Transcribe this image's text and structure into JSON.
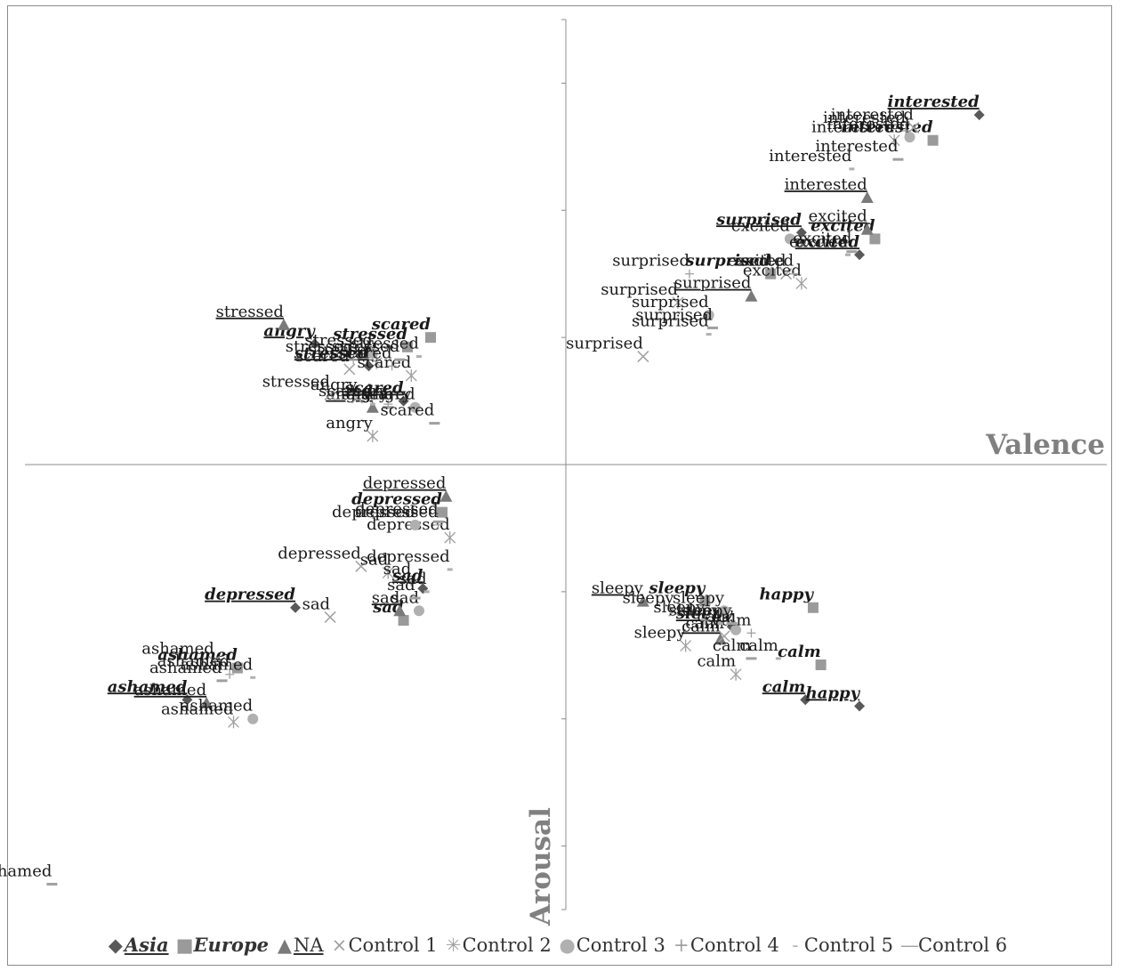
{
  "chart_data": {
    "type": "scatter",
    "title": "",
    "xlabel": "Valence",
    "ylabel": "Arousal",
    "xlim": [
      -0.7,
      0.7
    ],
    "ylim": [
      -0.7,
      0.7
    ],
    "grid": false,
    "legend_position": "bottom",
    "series": [
      {
        "name": "Asia",
        "marker": "diamond",
        "color": "#595959",
        "label_style": "bold-italic-underline",
        "points": [
          {
            "label": "interested",
            "x": 0.535,
            "y": 0.55
          },
          {
            "label": "excited",
            "x": 0.38,
            "y": 0.33
          },
          {
            "label": "surprised",
            "x": 0.305,
            "y": 0.365
          },
          {
            "label": "stressed",
            "x": -0.255,
            "y": 0.155
          },
          {
            "label": "angry",
            "x": -0.325,
            "y": 0.19
          },
          {
            "label": "scared",
            "x": -0.21,
            "y": 0.1
          },
          {
            "label": "depressed",
            "x": -0.35,
            "y": -0.225
          },
          {
            "label": "sad",
            "x": -0.185,
            "y": -0.195
          },
          {
            "label": "ashamed",
            "x": -0.49,
            "y": -0.37
          },
          {
            "label": "sleepy",
            "x": 0.215,
            "y": -0.255
          },
          {
            "label": "calm",
            "x": 0.31,
            "y": -0.37
          },
          {
            "label": "happy",
            "x": 0.38,
            "y": -0.38
          }
        ]
      },
      {
        "name": "Europe",
        "marker": "square",
        "color": "#9a9a9a",
        "label_style": "bold-italic",
        "points": [
          {
            "label": "interested",
            "x": 0.475,
            "y": 0.51
          },
          {
            "label": "excited",
            "x": 0.4,
            "y": 0.355
          },
          {
            "label": "surprised",
            "x": 0.265,
            "y": 0.3
          },
          {
            "label": "stressed",
            "x": -0.205,
            "y": 0.185
          },
          {
            "label": "scared",
            "x": -0.175,
            "y": 0.2
          },
          {
            "label": "depressed",
            "x": -0.16,
            "y": -0.075
          },
          {
            "label": "sad",
            "x": -0.21,
            "y": -0.245
          },
          {
            "label": "ashamed",
            "x": -0.425,
            "y": -0.32
          },
          {
            "label": "sleepy",
            "x": 0.18,
            "y": -0.215
          },
          {
            "label": "happy",
            "x": 0.32,
            "y": -0.225
          },
          {
            "label": "calm",
            "x": 0.33,
            "y": -0.315
          }
        ]
      },
      {
        "name": "NA",
        "marker": "triangle",
        "color": "#7a7a7a",
        "label_style": "underline",
        "points": [
          {
            "label": "interested",
            "x": 0.39,
            "y": 0.42
          },
          {
            "label": "excited",
            "x": 0.39,
            "y": 0.37
          },
          {
            "label": "surprised",
            "x": 0.24,
            "y": 0.265
          },
          {
            "label": "stressed",
            "x": -0.365,
            "y": 0.22
          },
          {
            "label": "angry",
            "x": -0.25,
            "y": 0.09
          },
          {
            "label": "depressed",
            "x": -0.155,
            "y": -0.05
          },
          {
            "label": "sad",
            "x": -0.215,
            "y": -0.23
          },
          {
            "label": "ashamed",
            "x": -0.465,
            "y": -0.375
          },
          {
            "label": "sleepy",
            "x": 0.1,
            "y": -0.215
          },
          {
            "label": "calm",
            "x": 0.2,
            "y": -0.275
          }
        ]
      },
      {
        "name": "Control 1",
        "marker": "x",
        "color": "#a0a0a0",
        "label_style": "plain",
        "points": [
          {
            "label": "interested",
            "x": 0.45,
            "y": 0.53
          },
          {
            "label": "excited",
            "x": 0.285,
            "y": 0.3
          },
          {
            "label": "surprised",
            "x": 0.1,
            "y": 0.17
          },
          {
            "label": "stressed",
            "x": -0.305,
            "y": 0.11
          },
          {
            "label": "angry",
            "x": -0.27,
            "y": 0.105
          },
          {
            "label": "scared",
            "x": -0.28,
            "y": 0.15
          },
          {
            "label": "depressed",
            "x": -0.265,
            "y": -0.16
          },
          {
            "label": "sad",
            "x": -0.305,
            "y": -0.24
          },
          {
            "label": "ashamed",
            "x": -0.455,
            "y": -0.31
          },
          {
            "label": "sleepy",
            "x": 0.14,
            "y": -0.23
          },
          {
            "label": "calm",
            "x": 0.205,
            "y": -0.27
          }
        ]
      },
      {
        "name": "Control 2",
        "marker": "asterisk",
        "color": "#a0a0a0",
        "label_style": "plain",
        "points": [
          {
            "label": "interested",
            "x": 0.425,
            "y": 0.51
          },
          {
            "label": "excited",
            "x": 0.305,
            "y": 0.285
          },
          {
            "label": "surprised",
            "x": 0.145,
            "y": 0.255
          },
          {
            "label": "stressed",
            "x": -0.245,
            "y": 0.16
          },
          {
            "label": "angry",
            "x": -0.25,
            "y": 0.045
          },
          {
            "label": "scared",
            "x": -0.2,
            "y": 0.14
          },
          {
            "label": "depressed",
            "x": -0.15,
            "y": -0.115
          },
          {
            "label": "sad",
            "x": -0.23,
            "y": -0.17
          },
          {
            "label": "ashamed",
            "x": -0.43,
            "y": -0.405
          },
          {
            "label": "sleepy",
            "x": 0.155,
            "y": -0.285
          },
          {
            "label": "calm",
            "x": 0.22,
            "y": -0.33
          }
        ]
      },
      {
        "name": "Control 3",
        "marker": "circle",
        "color": "#b0b0b0",
        "label_style": "plain",
        "points": [
          {
            "label": "interested",
            "x": 0.445,
            "y": 0.515
          },
          {
            "label": "excited",
            "x": 0.29,
            "y": 0.355
          },
          {
            "label": "surprised",
            "x": 0.185,
            "y": 0.235
          },
          {
            "label": "stressed",
            "x": -0.25,
            "y": 0.175
          },
          {
            "label": "scared",
            "x": -0.195,
            "y": 0.09
          },
          {
            "label": "depressed",
            "x": -0.195,
            "y": -0.095
          },
          {
            "label": "sad",
            "x": -0.19,
            "y": -0.23
          },
          {
            "label": "ashamed",
            "x": -0.405,
            "y": -0.4
          },
          {
            "label": "sleepy",
            "x": 0.205,
            "y": -0.23
          },
          {
            "label": "calm",
            "x": 0.22,
            "y": -0.26
          }
        ]
      },
      {
        "name": "Control 4",
        "marker": "plus",
        "color": "#a0a0a0",
        "label_style": "plain",
        "points": [
          {
            "label": "interested",
            "x": 0.44,
            "y": 0.525
          },
          {
            "label": "excited",
            "x": 0.295,
            "y": 0.3
          },
          {
            "label": "surprised",
            "x": 0.16,
            "y": 0.3
          },
          {
            "label": "stressed",
            "x": -0.275,
            "y": 0.165
          },
          {
            "label": "angry",
            "x": -0.23,
            "y": 0.095
          },
          {
            "label": "scared",
            "x": -0.225,
            "y": 0.155
          },
          {
            "label": "depressed",
            "x": -0.165,
            "y": -0.095
          },
          {
            "label": "sad",
            "x": -0.2,
            "y": -0.185
          },
          {
            "label": "ashamed",
            "x": -0.435,
            "y": -0.33
          },
          {
            "label": "sleepy",
            "x": 0.18,
            "y": -0.245
          },
          {
            "label": "calm",
            "x": 0.24,
            "y": -0.265
          }
        ]
      },
      {
        "name": "Control 5",
        "marker": "dash-small",
        "color": "#b0b0b0",
        "label_style": "plain",
        "points": [
          {
            "label": "interested",
            "x": 0.37,
            "y": 0.465
          },
          {
            "label": "excited",
            "x": 0.365,
            "y": 0.33
          },
          {
            "label": "surprised",
            "x": 0.185,
            "y": 0.205
          },
          {
            "label": "stressed",
            "x": -0.19,
            "y": 0.17
          },
          {
            "label": "angry",
            "x": -0.2,
            "y": 0.09
          },
          {
            "label": "scared",
            "x": -0.25,
            "y": 0.095
          },
          {
            "label": "depressed",
            "x": -0.15,
            "y": -0.165
          },
          {
            "label": "sad",
            "x": -0.18,
            "y": -0.2
          },
          {
            "label": "ashamed",
            "x": -0.405,
            "y": -0.335
          },
          {
            "label": "sleepy",
            "x": 0.2,
            "y": -0.25
          },
          {
            "label": "calm",
            "x": 0.275,
            "y": -0.305
          }
        ]
      },
      {
        "name": "Control 6",
        "marker": "dash",
        "color": "#a0a0a0",
        "label_style": "plain",
        "points": [
          {
            "label": "interested",
            "x": 0.43,
            "y": 0.48
          },
          {
            "label": "excited",
            "x": 0.37,
            "y": 0.335
          },
          {
            "label": "surprised",
            "x": 0.19,
            "y": 0.215
          },
          {
            "label": "stressed",
            "x": -0.215,
            "y": 0.165
          },
          {
            "label": "angry",
            "x": -0.23,
            "y": 0.09
          },
          {
            "label": "scared",
            "x": -0.17,
            "y": 0.065
          },
          {
            "label": "depressed",
            "x": -0.165,
            "y": -0.09
          },
          {
            "label": "sad",
            "x": -0.195,
            "y": -0.21
          },
          {
            "label": "ashamed",
            "x": -0.445,
            "y": -0.34
          },
          {
            "label": "sleepy",
            "x": 0.215,
            "y": -0.25
          },
          {
            "label": "calm",
            "x": 0.24,
            "y": -0.305
          },
          {
            "label": "ashamed",
            "x": -0.665,
            "y": -0.66
          }
        ]
      }
    ]
  },
  "legend_symbols": {
    "diamond": "◆",
    "square": "■",
    "triangle": "▲",
    "x": "×",
    "asterisk": "✳",
    "circle": "●",
    "plus": "+",
    "dash-small": "-",
    "dash": "—"
  }
}
